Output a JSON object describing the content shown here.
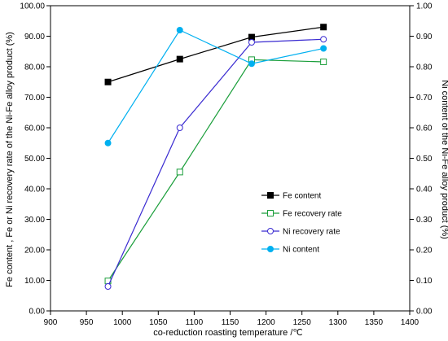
{
  "chart_data": {
    "type": "line",
    "title": "",
    "xlabel": "co-reduction roasting temperature /℃",
    "ylabel": "Fe content , Fe or Ni recovery rate of the Ni-Fe alloy product (%)",
    "y2label": "Ni content of the Ni-Fe alloy product (%)",
    "xlim": [
      900,
      1400
    ],
    "ylim": [
      0,
      100
    ],
    "y2lim": [
      0,
      1
    ],
    "xticks": [
      "900",
      "950",
      "1000",
      "1050",
      "1100",
      "1150",
      "1200",
      "1250",
      "1300",
      "1350",
      "1400"
    ],
    "yticks": [
      "0.00",
      "10.00",
      "20.00",
      "30.00",
      "40.00",
      "50.00",
      "60.00",
      "70.00",
      "80.00",
      "90.00",
      "100.00"
    ],
    "y2ticks": [
      "0.00",
      "0.10",
      "0.20",
      "0.30",
      "0.40",
      "0.50",
      "0.60",
      "0.70",
      "0.80",
      "0.90",
      "1.00"
    ],
    "grid": false,
    "legend_position": "right-lower",
    "series": [
      {
        "name": "Fe content",
        "axis": "left",
        "color": "#000000",
        "marker": "filled-square",
        "x": [
          980,
          1080,
          1180,
          1280
        ],
        "values": [
          75.0,
          82.5,
          89.7,
          93.0
        ]
      },
      {
        "name": "Fe recovery rate",
        "axis": "left",
        "color": "#1a9e3a",
        "marker": "hollow-square",
        "x": [
          980,
          1080,
          1180,
          1280
        ],
        "values": [
          9.8,
          45.5,
          82.3,
          81.6
        ]
      },
      {
        "name": "Ni recovery rate",
        "axis": "left",
        "color": "#3a2bd1",
        "marker": "hollow-circle",
        "x": [
          980,
          1080,
          1180,
          1280
        ],
        "values": [
          8.0,
          60.0,
          88.0,
          89.0
        ]
      },
      {
        "name": "Ni content",
        "axis": "right",
        "color": "#00b0f0",
        "marker": "filled-circle",
        "x": [
          980,
          1080,
          1180,
          1280
        ],
        "values": [
          0.55,
          0.92,
          0.81,
          0.86
        ]
      }
    ]
  }
}
